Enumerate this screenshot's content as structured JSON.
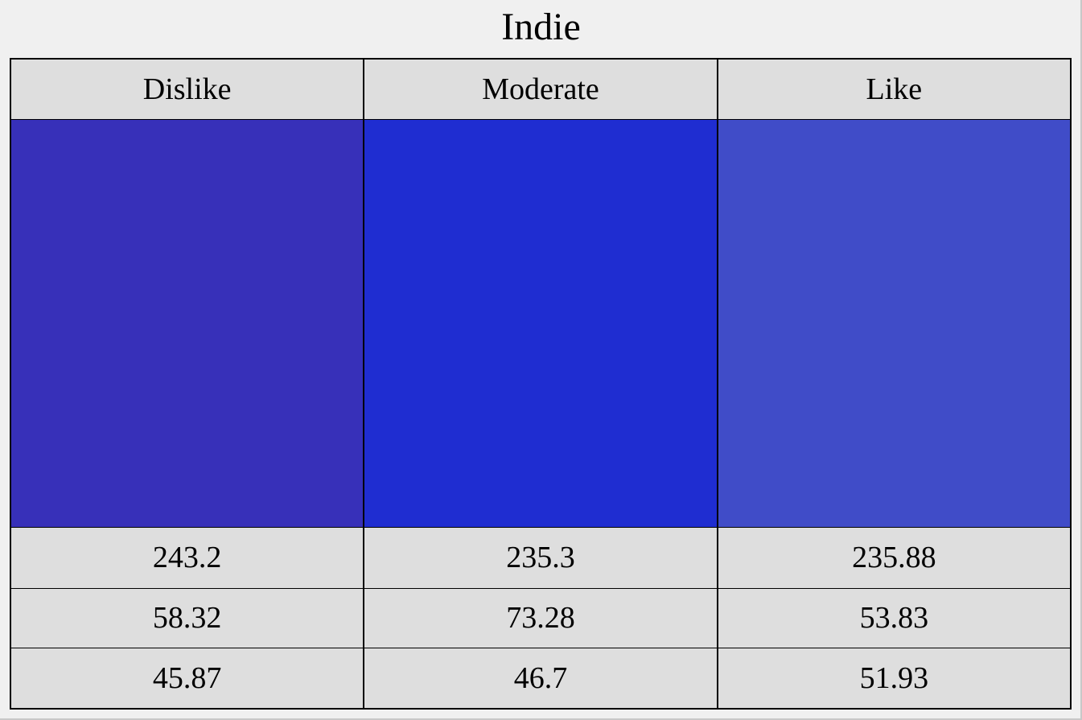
{
  "chart_data": {
    "type": "table",
    "title": "Indie",
    "columns": [
      "Dislike",
      "Moderate",
      "Like"
    ],
    "colors": [
      "#3730b9",
      "#1f2dd1",
      "#404cc8"
    ],
    "rows": [
      [
        "243.2",
        "235.3",
        "235.88"
      ],
      [
        "58.32",
        "73.28",
        "53.83"
      ],
      [
        "45.87",
        "46.7",
        "51.93"
      ]
    ]
  }
}
